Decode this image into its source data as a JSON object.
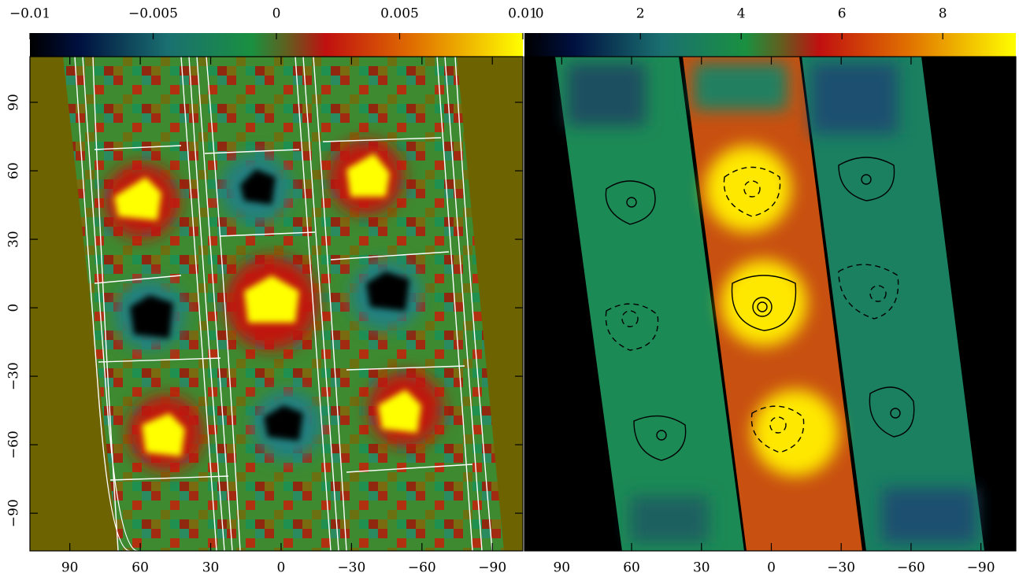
{
  "chart_data": [
    {
      "type": "heatmap",
      "colorbar": {
        "lim": [
          -0.01,
          0.01
        ],
        "ticks": [
          {
            "value": -0.01,
            "label": "−0.01"
          },
          {
            "value": -0.005,
            "label": "−0.005"
          },
          0,
          0.005,
          0.01
        ]
      },
      "xlim": [
        107,
        -103
      ],
      "xticks": [
        90,
        60,
        30,
        0,
        {
          "value": -30,
          "label": "−30"
        },
        {
          "value": -60,
          "label": "−60"
        },
        {
          "value": -90,
          "label": "−90"
        }
      ],
      "ylim": [
        -106.5,
        110
      ],
      "yticks": [
        {
          "value": -90,
          "label": "−90"
        },
        {
          "value": -60,
          "label": "−60"
        },
        {
          "value": -30,
          "label": "−30"
        },
        0,
        30,
        60,
        90
      ]
    },
    {
      "type": "heatmap",
      "colorbar": {
        "lim": [
          -0.3,
          9.45
        ],
        "ticks": [
          0,
          2,
          4,
          6,
          8
        ]
      },
      "xlim": [
        106,
        -105
      ],
      "xticks": [
        90,
        60,
        30,
        0,
        {
          "value": -30,
          "label": "−30"
        },
        {
          "value": -60,
          "label": "−60"
        },
        {
          "value": -90,
          "label": "−90"
        }
      ],
      "ylim": [
        -106.5,
        110
      ],
      "yticks": [
        -90,
        -60,
        -30,
        0,
        30,
        60,
        90
      ]
    }
  ]
}
